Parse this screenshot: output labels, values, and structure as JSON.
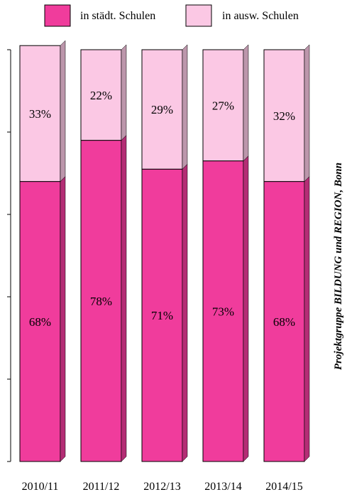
{
  "chart_data": {
    "type": "bar",
    "stacked": true,
    "categories": [
      "2010/11",
      "2011/12",
      "2012/13",
      "2013/14",
      "2014/15"
    ],
    "series": [
      {
        "name": "in städt. Schulen",
        "values": [
          68,
          78,
          71,
          73,
          68
        ],
        "labels": [
          "68%",
          "78%",
          "71%",
          "73%",
          "68%"
        ],
        "color": "#f03c9c"
      },
      {
        "name": "in ausw. Schulen",
        "values": [
          33,
          22,
          29,
          27,
          32
        ],
        "labels": [
          "33%",
          "22%",
          "29%",
          "27%",
          "32%"
        ],
        "color": "#fbc8e4"
      }
    ],
    "ylim": [
      0,
      100
    ],
    "legend_position": "top",
    "grid": false
  },
  "source_note": "Projektgruppe BILDUNG und REGION, Bonn"
}
